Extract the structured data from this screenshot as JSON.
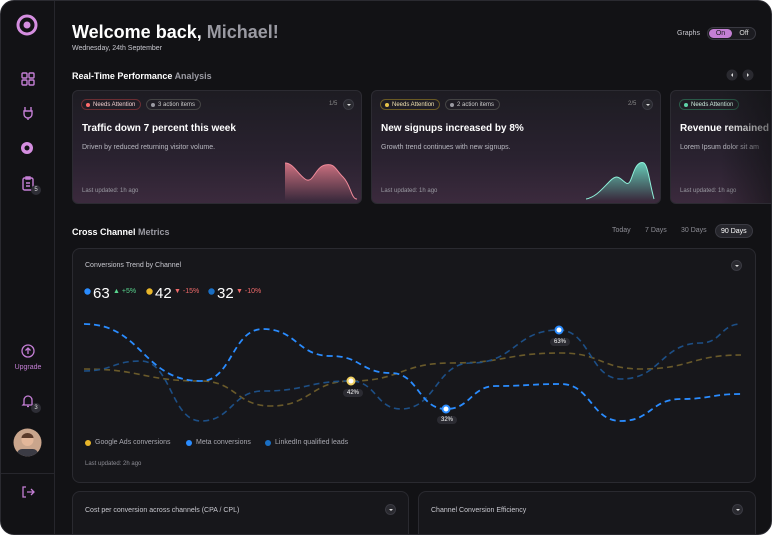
{
  "sidebar": {
    "upgrade": "Upgrade",
    "tasks_badge": "5",
    "alerts_badge": "3"
  },
  "header": {
    "greeting": "Welcome back,",
    "name": "Michael!",
    "date": "Wednesday, 24th September"
  },
  "graphs_toggle": {
    "label": "Graphs",
    "on": "On",
    "off": "Off"
  },
  "performance": {
    "title": "Real-Time Performance",
    "title_muted": "Analysis",
    "cards": [
      {
        "status": "Needs Attention",
        "actions": "3 action items",
        "pager": "1/5",
        "title": "Traffic down 7 percent this week",
        "description": "Driven by reduced returning visitor volume.",
        "updated": "Last updated: 1h ago"
      },
      {
        "status": "Needs Attention",
        "actions": "2 action items",
        "pager": "2/5",
        "title": "New signups increased by 8%",
        "description": "Growth trend continues with new signups.",
        "updated": "Last updated: 1h ago"
      },
      {
        "status": "Needs Attention",
        "title": "Revenue remained a",
        "description": "Lorem Ipsum dolor sit am",
        "updated": "Last updated: 1h ago"
      }
    ]
  },
  "metrics": {
    "title": "Cross Channel",
    "title_muted": "Metrics",
    "ranges": [
      "Today",
      "7 Days",
      "30 Days",
      "90 Days"
    ]
  },
  "trend": {
    "title": "Conversions Trend by Channel",
    "stats": [
      {
        "value": "63",
        "change": "+5%"
      },
      {
        "value": "42",
        "change": "-15%"
      },
      {
        "value": "32",
        "change": "-10%"
      }
    ],
    "points": [
      "42%",
      "32%",
      "63%"
    ],
    "legend": [
      "Google Ads conversions",
      "Meta conversions",
      "LinkedIn qualified leads"
    ],
    "updated": "Last updated: 2h ago"
  },
  "bottom": {
    "cpa_title": "Cost per conversion across channels (CPA / CPL)",
    "efficiency_title": "Channel Conversion Efficiency"
  }
}
